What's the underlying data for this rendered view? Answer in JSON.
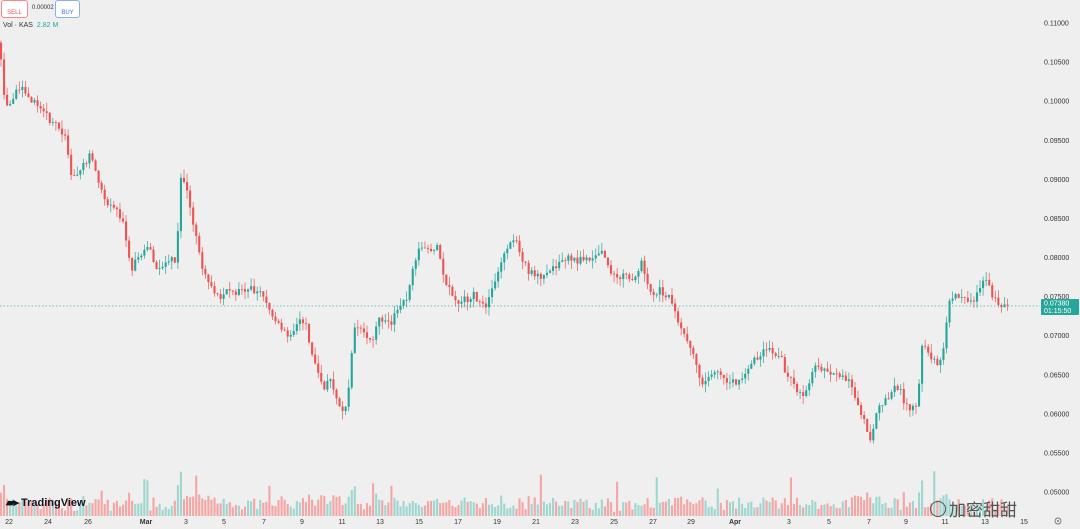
{
  "toolbar": {
    "sell_label": "SELL",
    "buy_label": "BUY",
    "spread": "0.00002"
  },
  "volume": {
    "label": "Vol · KAS",
    "value": "2.82 M"
  },
  "branding": {
    "logo": "TradingView",
    "watermark": "加密甜甜"
  },
  "colors": {
    "up": "#26a69a",
    "down": "#ef5350",
    "background": "#efefef",
    "last_price_tag": "#26a69a"
  },
  "chart_data": {
    "type": "candlestick",
    "interval": "4h",
    "y_axis": {
      "min": 0.05,
      "max": 0.11,
      "ticks": [
        "0.11000",
        "0.10500",
        "0.10000",
        "0.09500",
        "0.09000",
        "0.08500",
        "0.08000",
        "0.07500",
        "0.07000",
        "0.06500",
        "0.06000",
        "0.05500",
        "0.05000"
      ]
    },
    "x_axis": {
      "ticks": [
        "22",
        "24",
        "26",
        "Mar",
        "3",
        "5",
        "7",
        "9",
        "11",
        "13",
        "15",
        "17",
        "19",
        "21",
        "23",
        "25",
        "27",
        "29",
        "Apr",
        "3",
        "5",
        "7",
        "9",
        "11",
        "13",
        "15"
      ]
    },
    "last_price": "0.07380",
    "countdown": "01:15:50",
    "grid": false,
    "price_path": [
      [
        0,
        0.1075
      ],
      [
        5,
        0.099
      ],
      [
        12,
        0.1005
      ],
      [
        22,
        0.1018
      ],
      [
        33,
        0.1
      ],
      [
        42,
        0.099
      ],
      [
        52,
        0.0972
      ],
      [
        60,
        0.0965
      ],
      [
        66,
        0.0952
      ],
      [
        72,
        0.09
      ],
      [
        80,
        0.0915
      ],
      [
        90,
        0.093
      ],
      [
        98,
        0.09
      ],
      [
        108,
        0.0868
      ],
      [
        118,
        0.086
      ],
      [
        125,
        0.0835
      ],
      [
        131,
        0.0778
      ],
      [
        137,
        0.08
      ],
      [
        143,
        0.0808
      ],
      [
        150,
        0.081
      ],
      [
        156,
        0.0785
      ],
      [
        164,
        0.079
      ],
      [
        170,
        0.08
      ],
      [
        176,
        0.0795
      ],
      [
        181,
        0.09
      ],
      [
        186,
        0.089
      ],
      [
        190,
        0.086
      ],
      [
        196,
        0.083
      ],
      [
        202,
        0.079
      ],
      [
        208,
        0.0772
      ],
      [
        214,
        0.0752
      ],
      [
        220,
        0.0748
      ],
      [
        226,
        0.0758
      ],
      [
        234,
        0.0752
      ],
      [
        242,
        0.0758
      ],
      [
        250,
        0.0762
      ],
      [
        258,
        0.0755
      ],
      [
        264,
        0.0752
      ],
      [
        270,
        0.073
      ],
      [
        276,
        0.072
      ],
      [
        282,
        0.0705
      ],
      [
        288,
        0.07
      ],
      [
        294,
        0.071
      ],
      [
        300,
        0.072
      ],
      [
        306,
        0.0712
      ],
      [
        312,
        0.0678
      ],
      [
        318,
        0.0652
      ],
      [
        324,
        0.0632
      ],
      [
        330,
        0.0645
      ],
      [
        336,
        0.0625
      ],
      [
        342,
        0.06
      ],
      [
        348,
        0.062
      ],
      [
        354,
        0.0712
      ],
      [
        360,
        0.0715
      ],
      [
        366,
        0.0695
      ],
      [
        372,
        0.069
      ],
      [
        378,
        0.072
      ],
      [
        384,
        0.0722
      ],
      [
        390,
        0.0712
      ],
      [
        396,
        0.0732
      ],
      [
        402,
        0.074
      ],
      [
        408,
        0.0748
      ],
      [
        414,
        0.0792
      ],
      [
        420,
        0.0815
      ],
      [
        426,
        0.0812
      ],
      [
        432,
        0.0808
      ],
      [
        438,
        0.0815
      ],
      [
        444,
        0.0775
      ],
      [
        450,
        0.076
      ],
      [
        456,
        0.0742
      ],
      [
        462,
        0.0748
      ],
      [
        468,
        0.0745
      ],
      [
        474,
        0.0752
      ],
      [
        480,
        0.074
      ],
      [
        486,
        0.0735
      ],
      [
        492,
        0.0758
      ],
      [
        498,
        0.0785
      ],
      [
        504,
        0.0802
      ],
      [
        510,
        0.082
      ],
      [
        516,
        0.0822
      ],
      [
        522,
        0.08
      ],
      [
        528,
        0.0782
      ],
      [
        534,
        0.0778
      ],
      [
        540,
        0.0775
      ],
      [
        546,
        0.078
      ],
      [
        552,
        0.0785
      ],
      [
        558,
        0.0792
      ],
      [
        564,
        0.0798
      ],
      [
        570,
        0.08
      ],
      [
        576,
        0.0795
      ],
      [
        582,
        0.08
      ],
      [
        588,
        0.0798
      ],
      [
        594,
        0.08
      ],
      [
        600,
        0.081
      ],
      [
        606,
        0.08
      ],
      [
        612,
        0.0778
      ],
      [
        618,
        0.0772
      ],
      [
        624,
        0.0778
      ],
      [
        630,
        0.077
      ],
      [
        636,
        0.078
      ],
      [
        642,
        0.0795
      ],
      [
        648,
        0.0765
      ],
      [
        654,
        0.0752
      ],
      [
        660,
        0.0758
      ],
      [
        666,
        0.0752
      ],
      [
        672,
        0.0745
      ],
      [
        678,
        0.072
      ],
      [
        684,
        0.07
      ],
      [
        690,
        0.0688
      ],
      [
        696,
        0.0665
      ],
      [
        702,
        0.064
      ],
      [
        708,
        0.0645
      ],
      [
        714,
        0.0655
      ],
      [
        720,
        0.065
      ],
      [
        726,
        0.064
      ],
      [
        732,
        0.0645
      ],
      [
        738,
        0.0638
      ],
      [
        744,
        0.065
      ],
      [
        750,
        0.0662
      ],
      [
        756,
        0.067
      ],
      [
        762,
        0.068
      ],
      [
        768,
        0.0685
      ],
      [
        774,
        0.0672
      ],
      [
        780,
        0.0678
      ],
      [
        786,
        0.0652
      ],
      [
        792,
        0.0642
      ],
      [
        798,
        0.0628
      ],
      [
        804,
        0.0622
      ],
      [
        810,
        0.064
      ],
      [
        816,
        0.0665
      ],
      [
        822,
        0.0655
      ],
      [
        828,
        0.0653
      ],
      [
        834,
        0.0655
      ],
      [
        840,
        0.0648
      ],
      [
        846,
        0.0645
      ],
      [
        852,
        0.0635
      ],
      [
        858,
        0.061
      ],
      [
        864,
        0.059
      ],
      [
        870,
        0.0565
      ],
      [
        876,
        0.06
      ],
      [
        882,
        0.0612
      ],
      [
        888,
        0.0622
      ],
      [
        894,
        0.0632
      ],
      [
        900,
        0.063
      ],
      [
        906,
        0.061
      ],
      [
        912,
        0.0605
      ],
      [
        918,
        0.0615
      ],
      [
        921,
        0.069
      ],
      [
        926,
        0.068
      ],
      [
        932,
        0.067
      ],
      [
        938,
        0.0662
      ],
      [
        944,
        0.069
      ],
      [
        950,
        0.0745
      ],
      [
        956,
        0.075
      ],
      [
        962,
        0.0752
      ],
      [
        968,
        0.074
      ],
      [
        974,
        0.0745
      ],
      [
        980,
        0.0762
      ],
      [
        986,
        0.0775
      ],
      [
        992,
        0.0752
      ],
      [
        998,
        0.0738
      ],
      [
        1004,
        0.0735
      ],
      [
        1008,
        0.0738
      ]
    ]
  }
}
